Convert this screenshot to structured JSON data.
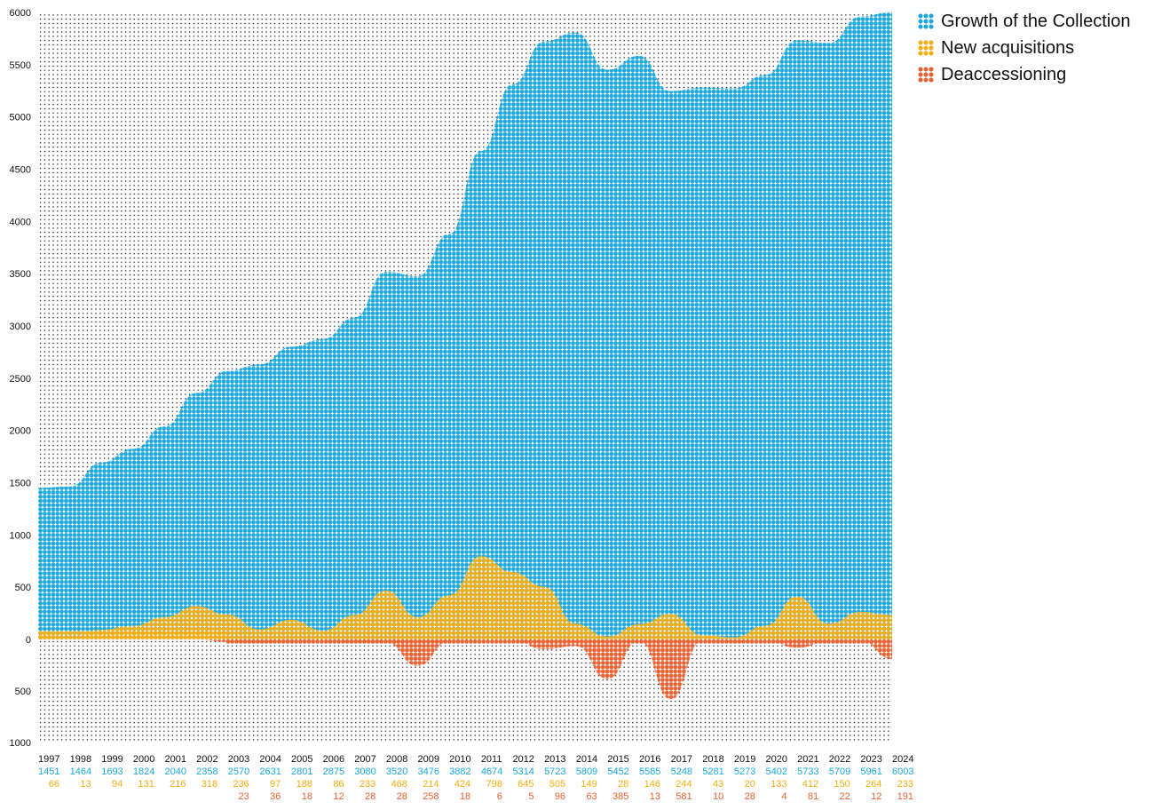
{
  "chart_data": {
    "type": "area",
    "title": "",
    "xlabel": "",
    "ylabel": "",
    "colors": {
      "growth": "#1BA8DC",
      "acquisitions": "#F5AE12",
      "deaccessioning": "#EA6132",
      "grid_dot": "#111111",
      "text": "#111111"
    },
    "y_ticks_positive": [
      "0",
      "500",
      "1000",
      "1500",
      "2000",
      "2500",
      "3000",
      "3500",
      "4000",
      "4500",
      "5000",
      "5500",
      "6000"
    ],
    "y_ticks_negative": [
      "500",
      "1000"
    ],
    "y_range_positive": [
      0,
      6000
    ],
    "y_range_negative": [
      0,
      1000
    ],
    "categories": [
      "1997",
      "1998",
      "1999",
      "2000",
      "2001",
      "2002",
      "2003",
      "2004",
      "2005",
      "2006",
      "2007",
      "2008",
      "2009",
      "2010",
      "2011",
      "2012",
      "2013",
      "2014",
      "2015",
      "2016",
      "2017",
      "2018",
      "2019",
      "2020",
      "2021",
      "2022",
      "2023",
      "2024"
    ],
    "series": [
      {
        "name": "Growth of the Collection",
        "key": "growth",
        "values": [
          1451,
          1464,
          1693,
          1824,
          2040,
          2358,
          2570,
          2631,
          2801,
          2875,
          3080,
          3520,
          3476,
          3882,
          4674,
          5314,
          5723,
          5809,
          5452,
          5585,
          5248,
          5281,
          5273,
          5402,
          5733,
          5709,
          5961,
          6003
        ]
      },
      {
        "name": "New acquisitions",
        "key": "acquisitions",
        "values": [
          66,
          13,
          94,
          131,
          216,
          318,
          236,
          97,
          188,
          86,
          233,
          468,
          214,
          424,
          798,
          645,
          505,
          149,
          28,
          146,
          244,
          43,
          20,
          133,
          412,
          150,
          264,
          233
        ]
      },
      {
        "name": "Deaccessioning",
        "key": "deaccessioning",
        "values": [
          null,
          null,
          null,
          null,
          null,
          null,
          23,
          36,
          18,
          12,
          28,
          28,
          258,
          18,
          6,
          5,
          96,
          63,
          385,
          13,
          581,
          10,
          28,
          4,
          81,
          22,
          12,
          191
        ]
      }
    ],
    "legend": {
      "placement": "top-right",
      "items": [
        {
          "label": "Growth of the Collection",
          "color": "#1BA8DC"
        },
        {
          "label": "New acquisitions",
          "color": "#F5AE12"
        },
        {
          "label": "Deaccessioning",
          "color": "#EA6132"
        }
      ]
    }
  }
}
